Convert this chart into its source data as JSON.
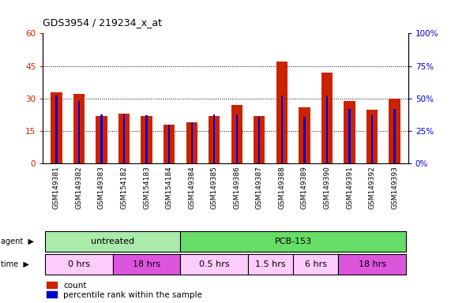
{
  "title": "GDS3954 / 219234_x_at",
  "samples": [
    "GSM149381",
    "GSM149382",
    "GSM149383",
    "GSM154182",
    "GSM154183",
    "GSM154184",
    "GSM149384",
    "GSM149385",
    "GSM149386",
    "GSM149387",
    "GSM149388",
    "GSM149389",
    "GSM149390",
    "GSM149391",
    "GSM149392",
    "GSM149393"
  ],
  "count_values": [
    33,
    32,
    22,
    23,
    22,
    18,
    19,
    22,
    27,
    22,
    47,
    26,
    42,
    29,
    25,
    30
  ],
  "percentile_values": [
    52,
    48,
    38,
    38,
    37,
    30,
    32,
    38,
    38,
    36,
    52,
    36,
    52,
    42,
    37,
    42
  ],
  "count_color": "#cc2200",
  "percentile_color": "#0000cc",
  "ylim_left": [
    0,
    60
  ],
  "ylim_right": [
    0,
    100
  ],
  "yticks_left": [
    0,
    15,
    30,
    45,
    60
  ],
  "yticks_right": [
    0,
    25,
    50,
    75,
    100
  ],
  "ytick_labels_right": [
    "0%",
    "25%",
    "50%",
    "75%",
    "100%"
  ],
  "agent_groups": [
    {
      "label": "untreated",
      "start": 0,
      "end": 6,
      "color": "#aaeaaa"
    },
    {
      "label": "PCB-153",
      "start": 6,
      "end": 16,
      "color": "#66dd66"
    }
  ],
  "time_groups": [
    {
      "label": "0 hrs",
      "start": 0,
      "end": 3,
      "color": "#ffccff"
    },
    {
      "label": "18 hrs",
      "start": 3,
      "end": 6,
      "color": "#dd55dd"
    },
    {
      "label": "0.5 hrs",
      "start": 6,
      "end": 9,
      "color": "#ffccff"
    },
    {
      "label": "1.5 hrs",
      "start": 9,
      "end": 11,
      "color": "#ffccff"
    },
    {
      "label": "6 hrs",
      "start": 11,
      "end": 13,
      "color": "#ffccff"
    },
    {
      "label": "18 hrs",
      "start": 13,
      "end": 16,
      "color": "#dd55dd"
    }
  ],
  "legend_count_label": "count",
  "legend_percentile_label": "percentile rank within the sample",
  "bg_color": "#ffffff",
  "tick_label_color_left": "#cc2200",
  "tick_label_color_right": "#0000cc"
}
